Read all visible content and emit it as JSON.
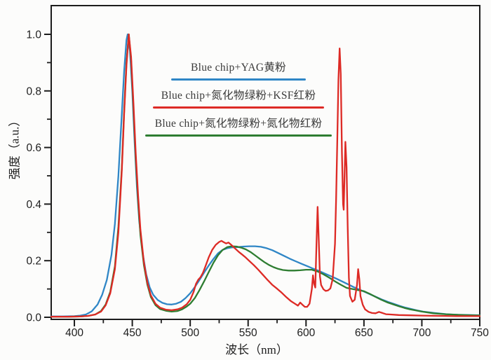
{
  "figure": {
    "background": "#fcfcfb",
    "axis_color": "#1c1c1c",
    "tick_label_color": "#1d1d1d"
  },
  "chart_data": {
    "type": "line",
    "title": "",
    "xlabel": "波长（nm）",
    "ylabel": "强度（a.u.）",
    "x_range": [
      380,
      750
    ],
    "y_range": [
      0,
      1.1
    ],
    "grid": false,
    "legend_position": "upper-center-inside",
    "x_major_ticks": [
      400,
      450,
      500,
      550,
      600,
      650,
      700,
      750
    ],
    "x_minor_ticks": [
      425,
      475,
      525,
      575,
      625,
      675,
      725
    ],
    "x_tick_labels": [
      "400",
      "450",
      "500",
      "550",
      "600",
      "650",
      "700",
      "750"
    ],
    "y_major_ticks": [
      0.0,
      0.2,
      0.4,
      0.6,
      0.8,
      1.0
    ],
    "y_minor_ticks": [
      0.1,
      0.3,
      0.5,
      0.7,
      0.9
    ],
    "y_tick_labels": [
      "0.0",
      "0.2",
      "0.4",
      "0.6",
      "0.8",
      "1.0"
    ],
    "series": [
      {
        "name": "Blue chip+YAG黄粉",
        "color": "#2f86c6",
        "points": [
          [
            380,
            0.003
          ],
          [
            390,
            0.003
          ],
          [
            400,
            0.004
          ],
          [
            405,
            0.006
          ],
          [
            410,
            0.01
          ],
          [
            415,
            0.021
          ],
          [
            420,
            0.045
          ],
          [
            424,
            0.08
          ],
          [
            428,
            0.132
          ],
          [
            432,
            0.22
          ],
          [
            435,
            0.33
          ],
          [
            438,
            0.5
          ],
          [
            441,
            0.72
          ],
          [
            443,
            0.87
          ],
          [
            445,
            0.98
          ],
          [
            446,
            1.0
          ],
          [
            448,
            0.94
          ],
          [
            450,
            0.8
          ],
          [
            452,
            0.62
          ],
          [
            454,
            0.46
          ],
          [
            456,
            0.34
          ],
          [
            459,
            0.225
          ],
          [
            462,
            0.152
          ],
          [
            465,
            0.106
          ],
          [
            468,
            0.08
          ],
          [
            472,
            0.061
          ],
          [
            476,
            0.051
          ],
          [
            480,
            0.046
          ],
          [
            484,
            0.045
          ],
          [
            488,
            0.048
          ],
          [
            492,
            0.055
          ],
          [
            496,
            0.068
          ],
          [
            500,
            0.085
          ],
          [
            504,
            0.107
          ],
          [
            508,
            0.132
          ],
          [
            512,
            0.158
          ],
          [
            516,
            0.183
          ],
          [
            520,
            0.206
          ],
          [
            524,
            0.226
          ],
          [
            528,
            0.238
          ],
          [
            532,
            0.244
          ],
          [
            536,
            0.247
          ],
          [
            541,
            0.248
          ],
          [
            546,
            0.25
          ],
          [
            551,
            0.251
          ],
          [
            556,
            0.251
          ],
          [
            561,
            0.249
          ],
          [
            566,
            0.244
          ],
          [
            571,
            0.237
          ],
          [
            576,
            0.227
          ],
          [
            581,
            0.217
          ],
          [
            586,
            0.207
          ],
          [
            591,
            0.198
          ],
          [
            596,
            0.189
          ],
          [
            601,
            0.181
          ],
          [
            606,
            0.172
          ],
          [
            611,
            0.164
          ],
          [
            616,
            0.155
          ],
          [
            621,
            0.146
          ],
          [
            626,
            0.137
          ],
          [
            631,
            0.127
          ],
          [
            636,
            0.117
          ],
          [
            641,
            0.107
          ],
          [
            646,
            0.098
          ],
          [
            651,
            0.089
          ],
          [
            656,
            0.08
          ],
          [
            661,
            0.071
          ],
          [
            666,
            0.062
          ],
          [
            671,
            0.054
          ],
          [
            676,
            0.047
          ],
          [
            681,
            0.04
          ],
          [
            686,
            0.034
          ],
          [
            691,
            0.029
          ],
          [
            696,
            0.024
          ],
          [
            701,
            0.02
          ],
          [
            711,
            0.015
          ],
          [
            721,
            0.011
          ],
          [
            731,
            0.009
          ],
          [
            741,
            0.008
          ],
          [
            750,
            0.007
          ]
        ]
      },
      {
        "name": "Blue chip+氮化物绿粉+氮化物红粉",
        "color": "#2e7d31",
        "points": [
          [
            380,
            0.002
          ],
          [
            395,
            0.002
          ],
          [
            405,
            0.003
          ],
          [
            412,
            0.005
          ],
          [
            418,
            0.01
          ],
          [
            423,
            0.022
          ],
          [
            427,
            0.045
          ],
          [
            431,
            0.09
          ],
          [
            435,
            0.18
          ],
          [
            438,
            0.32
          ],
          [
            441,
            0.53
          ],
          [
            443,
            0.73
          ],
          [
            445,
            0.9
          ],
          [
            447,
            1.0
          ],
          [
            449,
            0.91
          ],
          [
            451,
            0.74
          ],
          [
            453,
            0.56
          ],
          [
            455,
            0.41
          ],
          [
            457,
            0.29
          ],
          [
            460,
            0.185
          ],
          [
            463,
            0.115
          ],
          [
            466,
            0.072
          ],
          [
            470,
            0.043
          ],
          [
            474,
            0.029
          ],
          [
            479,
            0.023
          ],
          [
            484,
            0.02
          ],
          [
            489,
            0.022
          ],
          [
            493,
            0.028
          ],
          [
            497,
            0.038
          ],
          [
            500,
            0.048
          ],
          [
            504,
            0.068
          ],
          [
            508,
            0.096
          ],
          [
            512,
            0.127
          ],
          [
            516,
            0.16
          ],
          [
            520,
            0.192
          ],
          [
            524,
            0.219
          ],
          [
            528,
            0.238
          ],
          [
            532,
            0.248
          ],
          [
            536,
            0.251
          ],
          [
            540,
            0.25
          ],
          [
            544,
            0.246
          ],
          [
            548,
            0.24
          ],
          [
            552,
            0.231
          ],
          [
            556,
            0.219
          ],
          [
            560,
            0.207
          ],
          [
            564,
            0.195
          ],
          [
            568,
            0.185
          ],
          [
            572,
            0.177
          ],
          [
            576,
            0.171
          ],
          [
            580,
            0.167
          ],
          [
            585,
            0.165
          ],
          [
            590,
            0.165
          ],
          [
            595,
            0.166
          ],
          [
            600,
            0.168
          ],
          [
            605,
            0.168
          ],
          [
            610,
            0.162
          ],
          [
            615,
            0.152
          ],
          [
            620,
            0.14
          ],
          [
            625,
            0.127
          ],
          [
            630,
            0.115
          ],
          [
            635,
            0.104
          ],
          [
            640,
            0.1
          ],
          [
            645,
            0.096
          ],
          [
            650,
            0.092
          ],
          [
            655,
            0.083
          ],
          [
            660,
            0.072
          ],
          [
            665,
            0.062
          ],
          [
            670,
            0.053
          ],
          [
            675,
            0.046
          ],
          [
            680,
            0.039
          ],
          [
            685,
            0.033
          ],
          [
            690,
            0.028
          ],
          [
            695,
            0.024
          ],
          [
            700,
            0.02
          ],
          [
            710,
            0.014
          ],
          [
            720,
            0.011
          ],
          [
            730,
            0.009
          ],
          [
            740,
            0.0075
          ],
          [
            750,
            0.0065
          ]
        ]
      },
      {
        "name": "Blue chip+氮化物绿粉+KSF红粉",
        "color": "#dd2a25",
        "points": [
          [
            380,
            0.002
          ],
          [
            395,
            0.002
          ],
          [
            405,
            0.003
          ],
          [
            412,
            0.005
          ],
          [
            418,
            0.01
          ],
          [
            423,
            0.02
          ],
          [
            427,
            0.042
          ],
          [
            431,
            0.085
          ],
          [
            435,
            0.17
          ],
          [
            438,
            0.3
          ],
          [
            441,
            0.52
          ],
          [
            443,
            0.72
          ],
          [
            445,
            0.89
          ],
          [
            447,
            1.0
          ],
          [
            449,
            0.92
          ],
          [
            451,
            0.76
          ],
          [
            453,
            0.58
          ],
          [
            455,
            0.43
          ],
          [
            457,
            0.31
          ],
          [
            460,
            0.195
          ],
          [
            463,
            0.122
          ],
          [
            466,
            0.078
          ],
          [
            470,
            0.048
          ],
          [
            474,
            0.034
          ],
          [
            479,
            0.027
          ],
          [
            484,
            0.025
          ],
          [
            489,
            0.028
          ],
          [
            493,
            0.034
          ],
          [
            497,
            0.046
          ],
          [
            500,
            0.062
          ],
          [
            503,
            0.09
          ],
          [
            505,
            0.118
          ],
          [
            507,
            0.133
          ],
          [
            509,
            0.142
          ],
          [
            511,
            0.157
          ],
          [
            513,
            0.178
          ],
          [
            516,
            0.212
          ],
          [
            519,
            0.238
          ],
          [
            522,
            0.256
          ],
          [
            525,
            0.266
          ],
          [
            527,
            0.27
          ],
          [
            529,
            0.265
          ],
          [
            531,
            0.261
          ],
          [
            533,
            0.264
          ],
          [
            536,
            0.254
          ],
          [
            539,
            0.242
          ],
          [
            542,
            0.231
          ],
          [
            545,
            0.221
          ],
          [
            548,
            0.211
          ],
          [
            551,
            0.199
          ],
          [
            555,
            0.184
          ],
          [
            559,
            0.167
          ],
          [
            563,
            0.149
          ],
          [
            567,
            0.131
          ],
          [
            571,
            0.114
          ],
          [
            575,
            0.101
          ],
          [
            579,
            0.087
          ],
          [
            583,
            0.071
          ],
          [
            587,
            0.057
          ],
          [
            590,
            0.049
          ],
          [
            593,
            0.041
          ],
          [
            595,
            0.052
          ],
          [
            597,
            0.044
          ],
          [
            599,
            0.037
          ],
          [
            601,
            0.037
          ],
          [
            603,
            0.048
          ],
          [
            605,
            0.1
          ],
          [
            606,
            0.148
          ],
          [
            607,
            0.118
          ],
          [
            608,
            0.105
          ],
          [
            609,
            0.26
          ],
          [
            610,
            0.39
          ],
          [
            611,
            0.27
          ],
          [
            612,
            0.145
          ],
          [
            613,
            0.114
          ],
          [
            615,
            0.099
          ],
          [
            617,
            0.093
          ],
          [
            619,
            0.095
          ],
          [
            621,
            0.102
          ],
          [
            623,
            0.135
          ],
          [
            625,
            0.26
          ],
          [
            626,
            0.42
          ],
          [
            627,
            0.63
          ],
          [
            628,
            0.84
          ],
          [
            629,
            0.95
          ],
          [
            630,
            0.86
          ],
          [
            631,
            0.58
          ],
          [
            632,
            0.4
          ],
          [
            632.5,
            0.38
          ],
          [
            633,
            0.46
          ],
          [
            634,
            0.62
          ],
          [
            635,
            0.53
          ],
          [
            636,
            0.32
          ],
          [
            637,
            0.14
          ],
          [
            638,
            0.075
          ],
          [
            640,
            0.055
          ],
          [
            642,
            0.062
          ],
          [
            644,
            0.115
          ],
          [
            645,
            0.17
          ],
          [
            646,
            0.135
          ],
          [
            647,
            0.075
          ],
          [
            649,
            0.044
          ],
          [
            651,
            0.028
          ],
          [
            654,
            0.019
          ],
          [
            657,
            0.015
          ],
          [
            660,
            0.014
          ],
          [
            663,
            0.019
          ],
          [
            666,
            0.015
          ],
          [
            669,
            0.011
          ],
          [
            673,
            0.01
          ],
          [
            680,
            0.008
          ],
          [
            690,
            0.007
          ],
          [
            700,
            0.006
          ],
          [
            715,
            0.005
          ],
          [
            730,
            0.004
          ],
          [
            750,
            0.004
          ]
        ]
      }
    ],
    "legend_order": [
      0,
      2,
      1
    ]
  }
}
